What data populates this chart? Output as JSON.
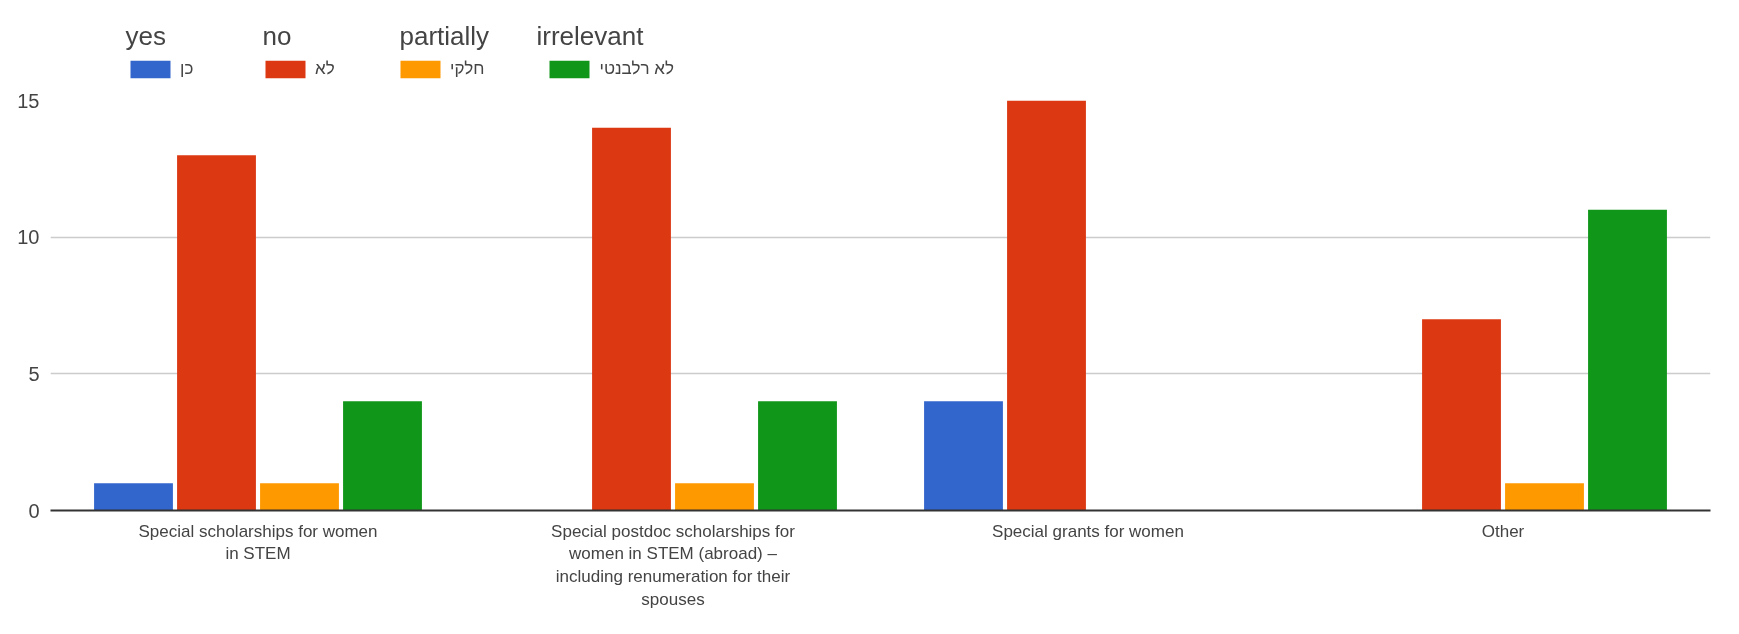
{
  "chart_data": {
    "type": "bar",
    "categories": [
      "Special scholarships for women in STEM",
      "Special postdoc scholarships for women in STEM (abroad) – including renumeration for their spouses",
      "Special grants for women",
      "Other"
    ],
    "series": [
      {
        "name": "כן",
        "color": "#3366cc",
        "values": [
          1,
          0,
          4,
          0
        ]
      },
      {
        "name": "לא",
        "color": "#dc3912",
        "values": [
          13,
          14,
          15,
          7
        ]
      },
      {
        "name": "חלקי",
        "color": "#ff9900",
        "values": [
          1,
          1,
          0,
          1
        ]
      },
      {
        "name": "לא רלבנטי",
        "color": "#109618",
        "values": [
          4,
          4,
          0,
          11
        ]
      }
    ],
    "annotations": [
      "yes",
      "no",
      "partially",
      "irrelevant"
    ],
    "ylim": [
      0,
      15
    ],
    "yticks": [
      0,
      5,
      10,
      15
    ],
    "grid": "y",
    "legend": "top left"
  }
}
